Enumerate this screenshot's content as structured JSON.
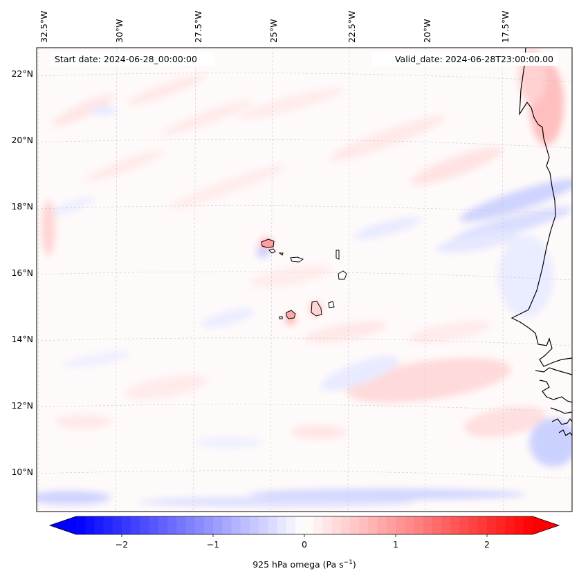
{
  "header": {
    "start_date": "Start date: 2024-06-28_00:00:00",
    "valid_date": "Valid_date: 2024-06-28T23:00:00.00"
  },
  "map": {
    "lon_labels": [
      "32.5°W",
      "30°W",
      "27.5°W",
      "25°W",
      "22.5°W",
      "20°W",
      "17.5°W"
    ],
    "lat_labels": [
      "22°N",
      "20°N",
      "18°N",
      "16°N",
      "14°N",
      "12°N",
      "10°N"
    ],
    "lon_range": [
      -33,
      -15.5
    ],
    "lat_range": [
      8.8,
      22.8
    ],
    "gridlines": true
  },
  "colorbar": {
    "tick_labels": [
      "−2",
      "−1",
      "0",
      "1",
      "2"
    ],
    "tick_values": [
      -2,
      -1,
      0,
      1,
      2
    ],
    "range": [
      -2.5,
      2.5
    ],
    "label": "925 hPa omega (Pa s",
    "label_exp": "−1",
    "label_close": ")",
    "colors": {
      "low": "#0000ff",
      "mid": "#ffffff",
      "high": "#ff0000"
    },
    "extend": "both"
  }
}
